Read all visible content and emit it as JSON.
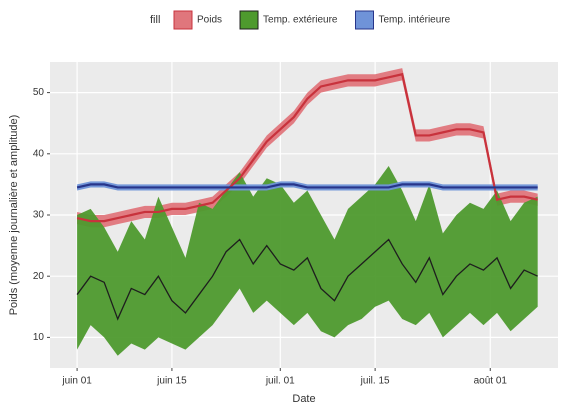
{
  "chart_data": {
    "type": "ribbon",
    "legend_title": "fill",
    "legend_position": "top",
    "xlabel": "Date",
    "ylabel": "Poids (moyenne journalière et amplitude)",
    "x": [
      "06-01",
      "06-03",
      "06-05",
      "06-07",
      "06-09",
      "06-11",
      "06-13",
      "06-15",
      "06-17",
      "06-19",
      "06-21",
      "06-23",
      "06-25",
      "06-27",
      "06-29",
      "07-01",
      "07-03",
      "07-05",
      "07-07",
      "07-09",
      "07-11",
      "07-13",
      "07-15",
      "07-17",
      "07-19",
      "07-21",
      "07-23",
      "07-25",
      "07-27",
      "07-29",
      "07-31",
      "08-02",
      "08-04",
      "08-06",
      "08-08"
    ],
    "xlim": [
      "05-28",
      "08-11"
    ],
    "xticks": [
      {
        "value": "06-01",
        "label": "juin 01"
      },
      {
        "value": "06-15",
        "label": "juin 15"
      },
      {
        "value": "07-01",
        "label": "juil. 01"
      },
      {
        "value": "07-15",
        "label": "juil. 15"
      },
      {
        "value": "08-01",
        "label": "août 01"
      }
    ],
    "ylim": [
      5,
      55
    ],
    "yticks": [
      10,
      20,
      30,
      40,
      50
    ],
    "grid": true,
    "series": [
      {
        "name": "Poids",
        "color": "#e0767c",
        "line_color": "#c8323c",
        "values": [
          29.5,
          29,
          29,
          29.5,
          30,
          30.5,
          30.5,
          31,
          31,
          31.5,
          32,
          34,
          36,
          39,
          42,
          44,
          46,
          49,
          51,
          51.5,
          52,
          52,
          52,
          52.5,
          53,
          43,
          43,
          43.5,
          44,
          44,
          43.5,
          32.5,
          33,
          33,
          32.5
        ],
        "low": [
          28.5,
          28,
          28,
          28.5,
          29,
          29.5,
          29.5,
          30,
          30,
          30.5,
          31,
          33,
          35,
          38,
          41,
          43,
          45,
          48,
          50,
          50.5,
          51,
          51,
          51,
          51.5,
          52,
          42,
          42,
          42.5,
          43,
          43,
          42.5,
          31.5,
          32,
          32,
          31.5
        ],
        "high": [
          30.5,
          30,
          30,
          30.5,
          31,
          31.5,
          31.5,
          32,
          32,
          32.5,
          33,
          35,
          37,
          40,
          43,
          45,
          47,
          50,
          52,
          52.5,
          53,
          53,
          53,
          53.5,
          54,
          44,
          44,
          44.5,
          45,
          45,
          44.5,
          33.5,
          34,
          34,
          33.5
        ]
      },
      {
        "name": "Temp. extérieure",
        "color": "#4e9a2e",
        "line_color": "#1e1e1e",
        "values": [
          17,
          20,
          19,
          13,
          18,
          17,
          20,
          16,
          14,
          17,
          20,
          24,
          26,
          22,
          25,
          22,
          21,
          23,
          18,
          16,
          20,
          22,
          24,
          26,
          22,
          19,
          23,
          17,
          20,
          22,
          21,
          23,
          18,
          21,
          20
        ],
        "low": [
          8,
          12,
          10,
          7,
          9,
          8,
          10,
          9,
          8,
          10,
          12,
          15,
          18,
          14,
          16,
          14,
          12,
          14,
          11,
          10,
          12,
          13,
          15,
          16,
          13,
          12,
          14,
          10,
          12,
          14,
          12,
          14,
          11,
          13,
          15
        ],
        "high": [
          30,
          31,
          28,
          24,
          29,
          26,
          33,
          28,
          23,
          32,
          31,
          34,
          37,
          33,
          36,
          35,
          32,
          34,
          30,
          26,
          31,
          33,
          35,
          38,
          34,
          29,
          35,
          27,
          30,
          32,
          31,
          34,
          29,
          32,
          33
        ]
      },
      {
        "name": "Temp. intérieure",
        "color": "#6f93d8",
        "line_color": "#27358a",
        "values": [
          34.5,
          35,
          35,
          34.5,
          34.5,
          34.5,
          34.5,
          34.5,
          34.5,
          34.5,
          34.5,
          34.5,
          34.5,
          34.5,
          34.5,
          35,
          35,
          34.5,
          34.5,
          34.5,
          34.5,
          34.5,
          34.5,
          34.5,
          35,
          35,
          35,
          34.5,
          34.5,
          34.5,
          34.5,
          34.5,
          34.5,
          34.5,
          34.5
        ],
        "low": [
          34,
          34.5,
          34.5,
          34,
          34,
          34,
          34,
          34,
          34,
          34,
          34,
          34,
          34,
          34,
          34,
          34.5,
          34.5,
          34,
          34,
          34,
          34,
          34,
          34,
          34,
          34.5,
          34.5,
          34.5,
          34,
          34,
          34,
          34,
          34,
          34,
          34,
          34
        ],
        "high": [
          35,
          35.5,
          35.5,
          35,
          35,
          35,
          35,
          35,
          35,
          35,
          35,
          35,
          35,
          35,
          35,
          35.5,
          35.5,
          35,
          35,
          35,
          35,
          35,
          35,
          35,
          35.5,
          35.5,
          35.5,
          35,
          35,
          35,
          35,
          35,
          35,
          35,
          35
        ]
      }
    ]
  }
}
